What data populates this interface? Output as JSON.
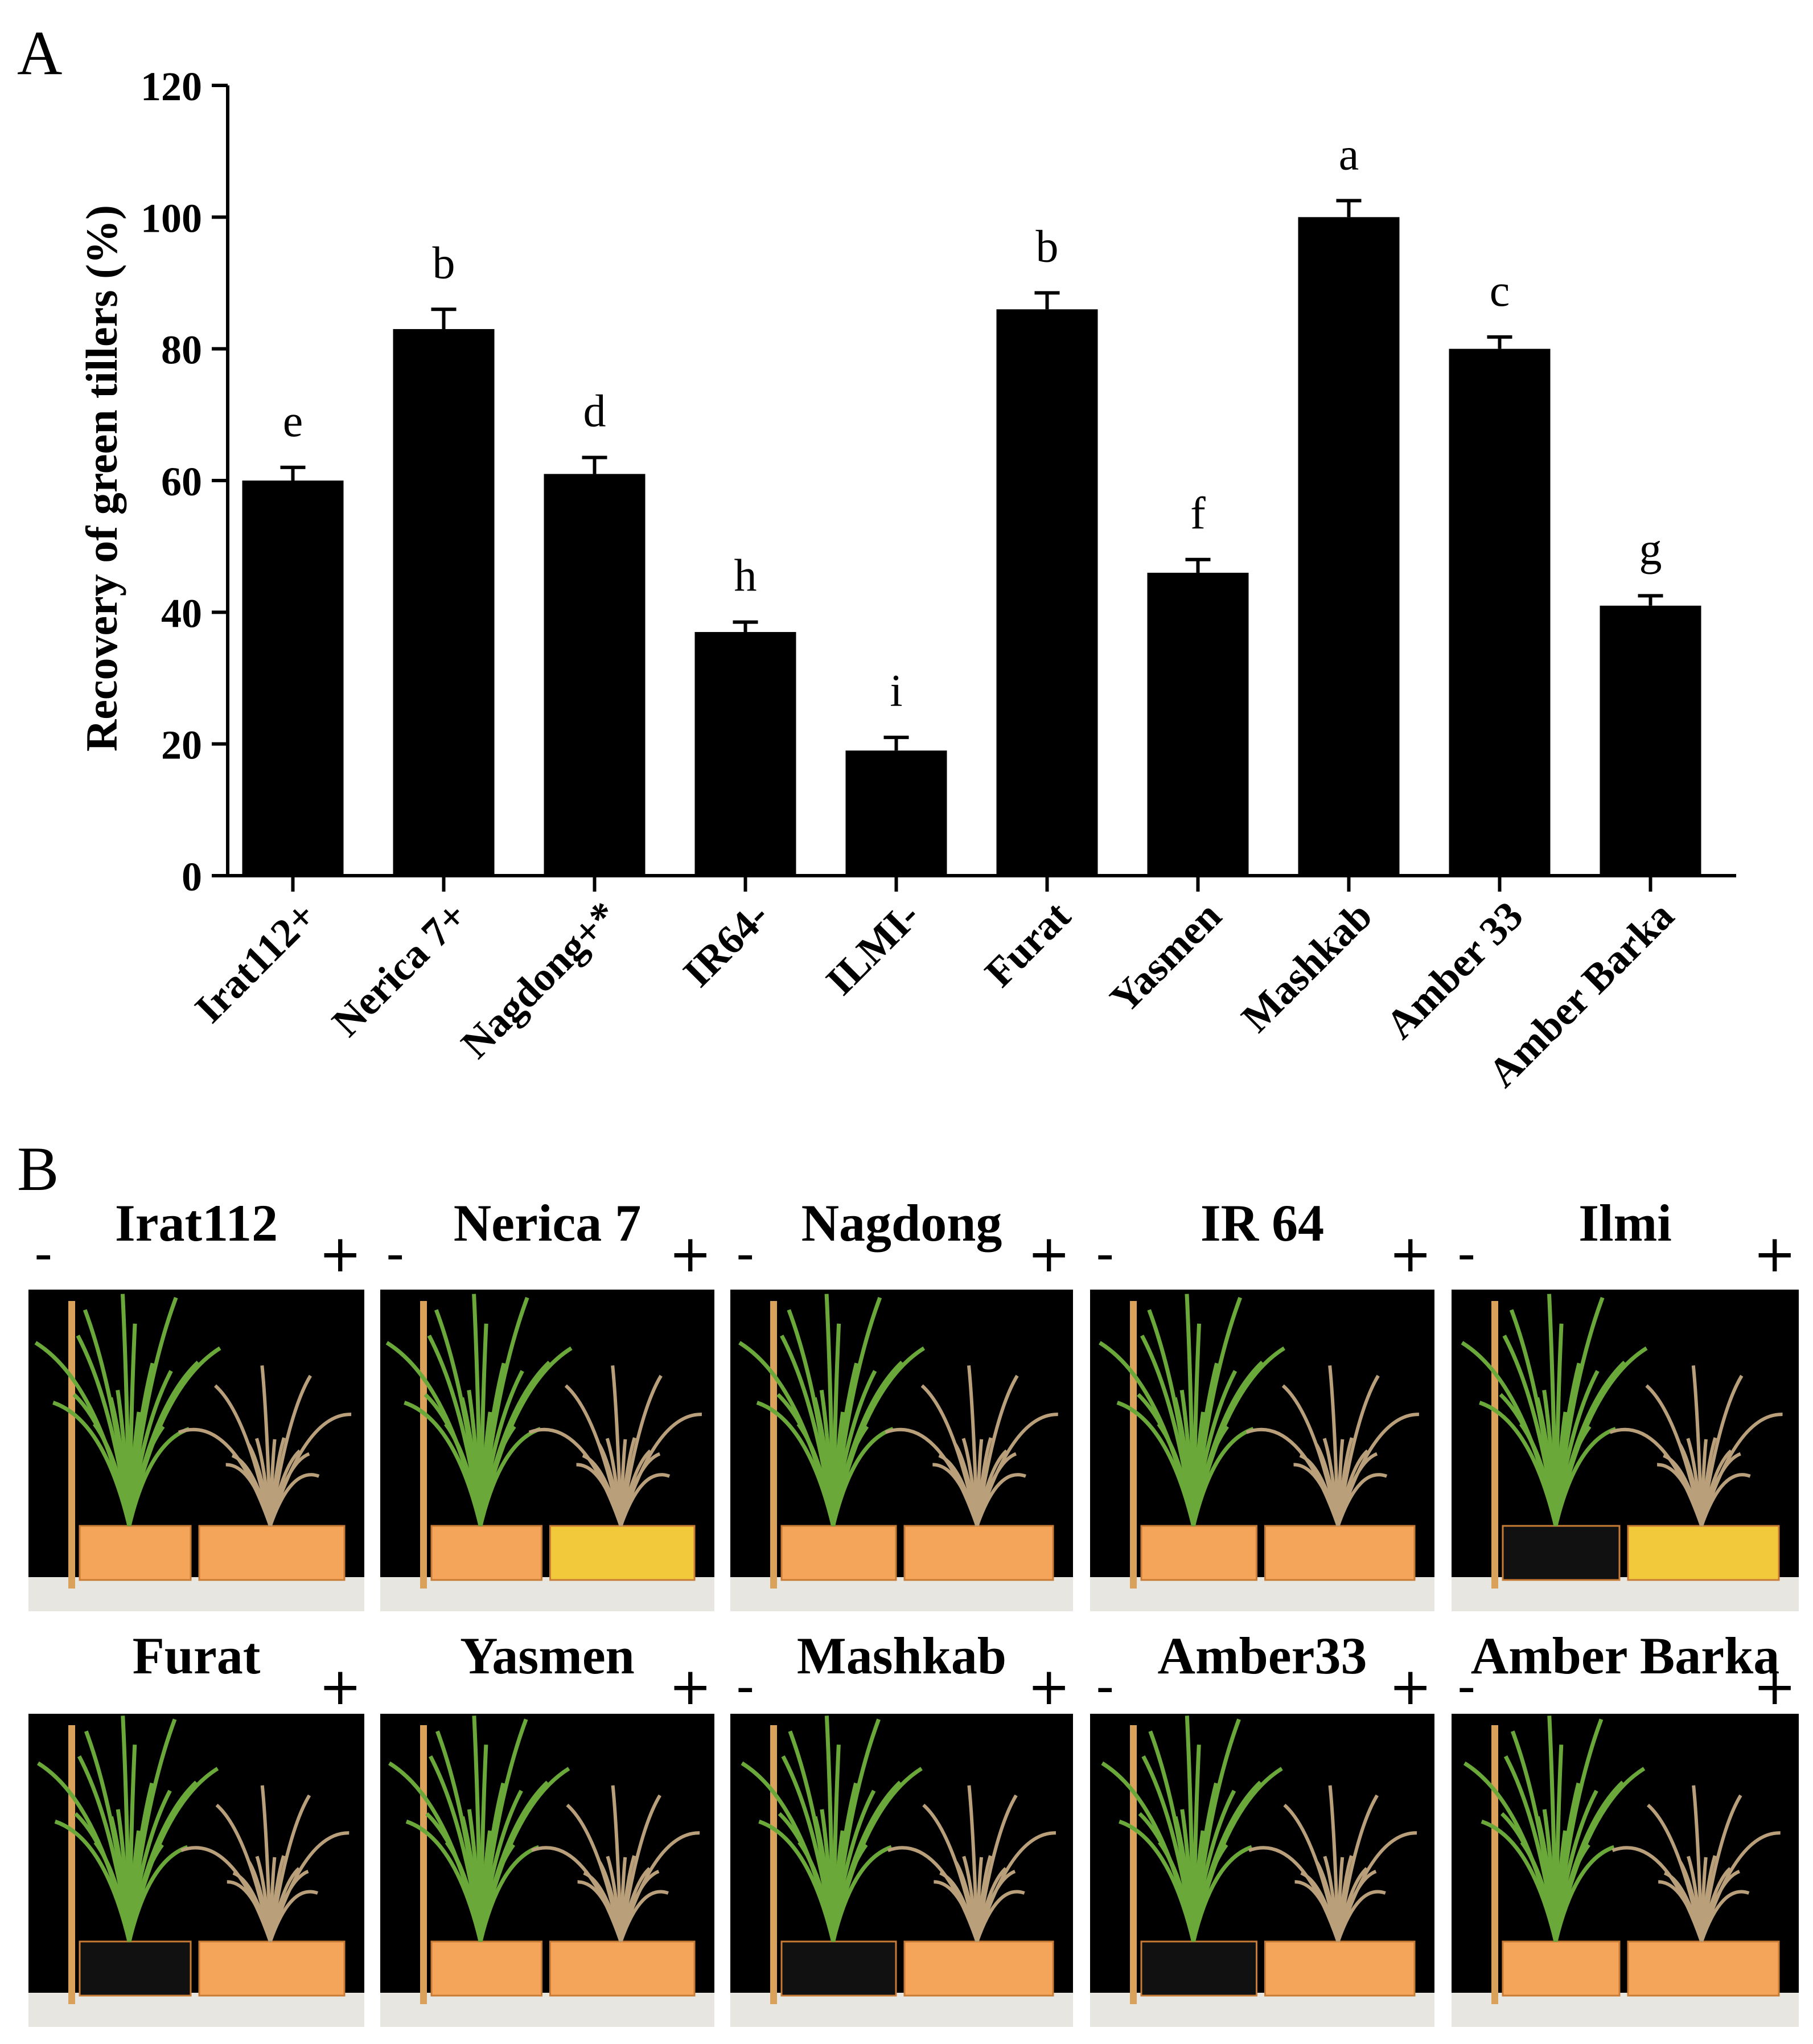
{
  "panels": {
    "a_label": "A",
    "b_label": "B"
  },
  "chart_data": {
    "type": "bar",
    "title": "",
    "xlabel": "",
    "ylabel": "Recovery  of green tillers (%)",
    "ylim": [
      0,
      120
    ],
    "yticks": [
      0,
      20,
      40,
      60,
      80,
      100,
      120
    ],
    "categories": [
      "Irat112+",
      "Nerica 7+",
      "Nagdong+*",
      "IR64-",
      "ILMI-",
      "Furat",
      "Yasmen",
      "Mashkab",
      "Amber 33",
      "Amber Barka"
    ],
    "values": [
      60,
      83,
      61,
      37,
      19,
      86,
      46,
      100,
      80,
      41
    ],
    "errors": [
      2,
      3,
      2.5,
      1.5,
      2,
      2.5,
      2,
      2.5,
      1.8,
      1.5
    ],
    "significance": [
      "e",
      "b",
      "d",
      "h",
      "i",
      "b",
      "f",
      "a",
      "c",
      "g"
    ],
    "bar_color": "#000000"
  },
  "photos": [
    {
      "title": "Irat112",
      "minus": "-",
      "plus": "+"
    },
    {
      "title": "Nerica 7",
      "minus": "-",
      "plus": "+"
    },
    {
      "title": "Nagdong",
      "minus": "-",
      "plus": "+"
    },
    {
      "title": "IR 64",
      "minus": "-",
      "plus": "+"
    },
    {
      "title": "Ilmi",
      "minus": "-",
      "plus": "+"
    },
    {
      "title": "Furat",
      "minus": "",
      "plus": "+"
    },
    {
      "title": "Yasmen",
      "minus": "",
      "plus": "+"
    },
    {
      "title": "Mashkab",
      "minus": "-",
      "plus": "+"
    },
    {
      "title": "Amber33",
      "minus": "-",
      "plus": "+"
    },
    {
      "title": "Amber Barka",
      "minus": "-",
      "plus": "+"
    }
  ],
  "colors": {
    "tray": "#f4a55a",
    "tray_yellow": "#f2c93a",
    "stake": "#d9a15a",
    "green_plant": "#6aa83a",
    "dry_plant": "#b9a07a",
    "table": "#e8e6e0"
  }
}
